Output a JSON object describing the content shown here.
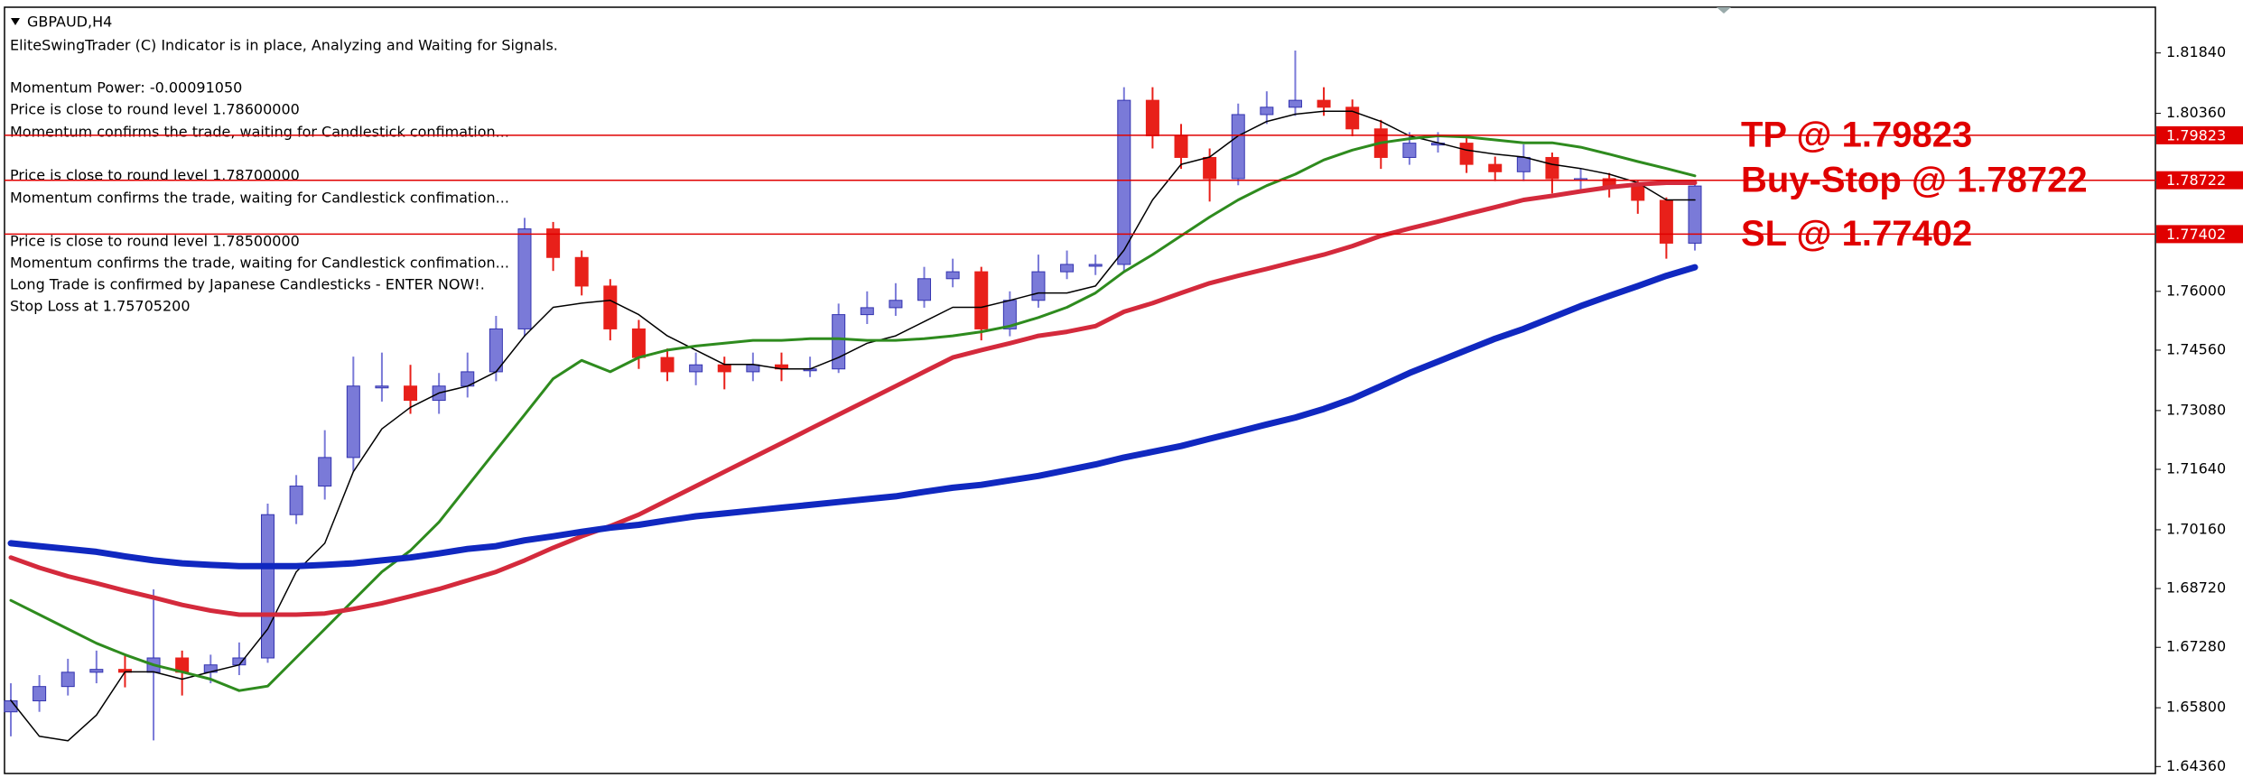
{
  "chart_data": {
    "type": "candlestick",
    "title": "GBPAUD,H4",
    "annotations": [
      "EliteSwingTrader (C) Indicator is in place, Analyzing and Waiting for Signals.",
      "Momentum Power: -0.00091050",
      "Price is close to round level 1.78600000",
      "Momentum confirms the trade, waiting for Candlestick confimation...",
      "Price is close to round level 1.78700000",
      "Momentum confirms the trade, waiting for Candlestick confimation...",
      "Price is close to round level 1.78500000",
      "Momentum confirms the trade, waiting for Candlestick confimation...",
      "Long Trade is confirmed by Japanese Candlesticks - ENTER NOW!.",
      "Stop Loss at 1.75705200"
    ],
    "up_color": "#7a7ad8",
    "down_color": "#e8201a",
    "open": [
      1.657,
      1.6597,
      1.6632,
      1.6667,
      1.6674,
      1.6667,
      1.6702,
      1.6667,
      1.6685,
      1.6702,
      1.7053,
      1.7123,
      1.7193,
      1.7368,
      1.7368,
      1.7333,
      1.7368,
      1.7403,
      1.7508,
      1.7753,
      1.7683,
      1.7613,
      1.7508,
      1.7438,
      1.7403,
      1.742,
      1.7403,
      1.742,
      1.741,
      1.741,
      1.7543,
      1.756,
      1.7578,
      1.7631,
      1.7648,
      1.7508,
      1.7578,
      1.7648,
      1.7666,
      1.7666,
      1.8068,
      1.7981,
      1.7928,
      1.7876,
      1.8033,
      1.8051,
      1.8068,
      1.8051,
      1.7998,
      1.7928,
      1.7963,
      1.7963,
      1.7911,
      1.7893,
      1.7928,
      1.7876,
      1.7876,
      1.7858,
      1.7823,
      1.7718
    ],
    "high": [
      1.664,
      1.666,
      1.67,
      1.672,
      1.671,
      1.687,
      1.672,
      1.671,
      1.674,
      1.708,
      1.715,
      1.726,
      1.744,
      1.745,
      1.742,
      1.74,
      1.745,
      1.754,
      1.778,
      1.777,
      1.77,
      1.763,
      1.753,
      1.746,
      1.745,
      1.744,
      1.745,
      1.745,
      1.744,
      1.757,
      1.76,
      1.762,
      1.766,
      1.768,
      1.766,
      1.76,
      1.769,
      1.77,
      1.769,
      1.81,
      1.81,
      1.801,
      1.795,
      1.806,
      1.809,
      1.819,
      1.81,
      1.807,
      1.802,
      1.799,
      1.799,
      1.798,
      1.793,
      1.796,
      1.794,
      1.79,
      1.789,
      1.787,
      1.783,
      1.787
    ],
    "low": [
      1.651,
      1.657,
      1.661,
      1.664,
      1.663,
      1.65,
      1.661,
      1.664,
      1.666,
      1.669,
      1.703,
      1.709,
      1.716,
      1.733,
      1.73,
      1.73,
      1.734,
      1.738,
      1.749,
      1.765,
      1.759,
      1.748,
      1.741,
      1.738,
      1.737,
      1.736,
      1.738,
      1.738,
      1.739,
      1.74,
      1.752,
      1.754,
      1.756,
      1.761,
      1.748,
      1.749,
      1.756,
      1.763,
      1.764,
      1.765,
      1.795,
      1.79,
      1.782,
      1.786,
      1.801,
      1.803,
      1.803,
      1.798,
      1.79,
      1.791,
      1.794,
      1.789,
      1.787,
      1.787,
      1.784,
      1.785,
      1.783,
      1.779,
      1.768,
      1.77
    ],
    "close": [
      1.6597,
      1.6632,
      1.6667,
      1.6674,
      1.6667,
      1.6702,
      1.6667,
      1.6685,
      1.6702,
      1.7053,
      1.7123,
      1.7193,
      1.7368,
      1.7368,
      1.7333,
      1.7368,
      1.7403,
      1.7508,
      1.7753,
      1.7683,
      1.7613,
      1.7508,
      1.7438,
      1.7403,
      1.742,
      1.7403,
      1.742,
      1.741,
      1.741,
      1.7543,
      1.756,
      1.7578,
      1.7631,
      1.7648,
      1.7508,
      1.7578,
      1.7648,
      1.7666,
      1.7666,
      1.8068,
      1.7981,
      1.7928,
      1.7876,
      1.8033,
      1.8051,
      1.8068,
      1.8051,
      1.7998,
      1.7928,
      1.7963,
      1.7963,
      1.7911,
      1.7893,
      1.7928,
      1.7876,
      1.7876,
      1.7858,
      1.7823,
      1.7718,
      1.7858
    ],
    "series": [
      {
        "color": "#000000",
        "values": [
          1.6598,
          1.651,
          1.6499,
          1.6562,
          1.6668,
          1.6668,
          1.665,
          1.6668,
          1.6685,
          1.6773,
          1.6913,
          1.6983,
          1.7158,
          1.7263,
          1.7316,
          1.7351,
          1.7368,
          1.7403,
          1.7491,
          1.7561,
          1.7571,
          1.7578,
          1.7543,
          1.7491,
          1.7456,
          1.7421,
          1.7421,
          1.741,
          1.741,
          1.7438,
          1.7473,
          1.7491,
          1.7526,
          1.7561,
          1.7561,
          1.7578,
          1.7596,
          1.7596,
          1.7613,
          1.7701,
          1.7824,
          1.7911,
          1.7929,
          1.7981,
          1.8016,
          1.8034,
          1.8041,
          1.8041,
          1.8016,
          1.7981,
          1.7964,
          1.7946,
          1.7936,
          1.7929,
          1.7911,
          1.7901,
          1.7887,
          1.7866,
          1.7824,
          1.7824
        ]
      },
      {
        "color": "#2e8b1e",
        "values": [
          1.6843,
          1.6808,
          1.6773,
          1.6738,
          1.671,
          1.6685,
          1.6668,
          1.665,
          1.6622,
          1.6633,
          1.6703,
          1.6773,
          1.6843,
          1.6913,
          1.6965,
          1.7035,
          1.7123,
          1.7211,
          1.7298,
          1.7386,
          1.7431,
          1.7403,
          1.7438,
          1.7456,
          1.7466,
          1.7473,
          1.748,
          1.748,
          1.7484,
          1.7484,
          1.748,
          1.748,
          1.7484,
          1.7491,
          1.7501,
          1.7515,
          1.7536,
          1.7561,
          1.7596,
          1.7648,
          1.769,
          1.7736,
          1.7782,
          1.7824,
          1.7859,
          1.7887,
          1.7922,
          1.7946,
          1.7964,
          1.7974,
          1.7981,
          1.7978,
          1.7971,
          1.7964,
          1.7964,
          1.7953,
          1.7936,
          1.7918,
          1.7901,
          1.7883
        ]
      },
      {
        "color": "#d42a3c",
        "values": [
          1.6948,
          1.6923,
          1.6902,
          1.6885,
          1.6867,
          1.685,
          1.6832,
          1.6818,
          1.6808,
          1.6808,
          1.6808,
          1.6811,
          1.6822,
          1.6836,
          1.6853,
          1.6871,
          1.6892,
          1.6913,
          1.6941,
          1.6972,
          1.7,
          1.7025,
          1.7053,
          1.7088,
          1.7123,
          1.7158,
          1.7193,
          1.7228,
          1.7263,
          1.7298,
          1.7333,
          1.7368,
          1.7403,
          1.7438,
          1.7456,
          1.7473,
          1.7491,
          1.7501,
          1.7515,
          1.755,
          1.7571,
          1.7596,
          1.762,
          1.7638,
          1.7655,
          1.7673,
          1.769,
          1.7711,
          1.7736,
          1.7754,
          1.7771,
          1.7789,
          1.7806,
          1.7824,
          1.7834,
          1.7845,
          1.7855,
          1.7862,
          1.7866,
          1.7866
        ]
      },
      {
        "color": "#1028c0",
        "values": [
          1.6983,
          1.6976,
          1.6969,
          1.6962,
          1.6951,
          1.6941,
          1.6934,
          1.693,
          1.6927,
          1.6927,
          1.6927,
          1.693,
          1.6934,
          1.6941,
          1.6948,
          1.6958,
          1.6969,
          1.6976,
          1.699,
          1.7,
          1.7011,
          1.7021,
          1.7028,
          1.7039,
          1.7049,
          1.7056,
          1.7063,
          1.707,
          1.7077,
          1.7084,
          1.7091,
          1.7098,
          1.7109,
          1.7119,
          1.7126,
          1.7137,
          1.7148,
          1.7162,
          1.7176,
          1.7193,
          1.7207,
          1.7221,
          1.7239,
          1.7256,
          1.7274,
          1.7291,
          1.7312,
          1.7337,
          1.7368,
          1.74,
          1.7428,
          1.7456,
          1.7484,
          1.7508,
          1.7536,
          1.7564,
          1.7589,
          1.7613,
          1.7638,
          1.7659
        ]
      }
    ],
    "levels": [
      {
        "label": "TP @ 1.79823",
        "value": 1.79823
      },
      {
        "label": "Buy-Stop @ 1.78722",
        "value": 1.78722
      },
      {
        "label": "SL @ 1.77402",
        "value": 1.77402
      }
    ],
    "level_color": "#e00000",
    "ylim": [
      1.6419,
      1.8296
    ],
    "yticks": [
      {
        "value": 1.8184,
        "label": "1.81840"
      },
      {
        "value": 1.8036,
        "label": "1.80360"
      },
      {
        "value": 1.76,
        "label": "1.76000"
      },
      {
        "value": 1.7456,
        "label": "1.74560"
      },
      {
        "value": 1.7308,
        "label": "1.73080"
      },
      {
        "value": 1.7164,
        "label": "1.71640"
      },
      {
        "value": 1.7016,
        "label": "1.70160"
      },
      {
        "value": 1.6872,
        "label": "1.68720"
      },
      {
        "value": 1.6728,
        "label": "1.67280"
      },
      {
        "value": 1.658,
        "label": "1.65800"
      },
      {
        "value": 1.6436,
        "label": "1.64360"
      }
    ]
  }
}
